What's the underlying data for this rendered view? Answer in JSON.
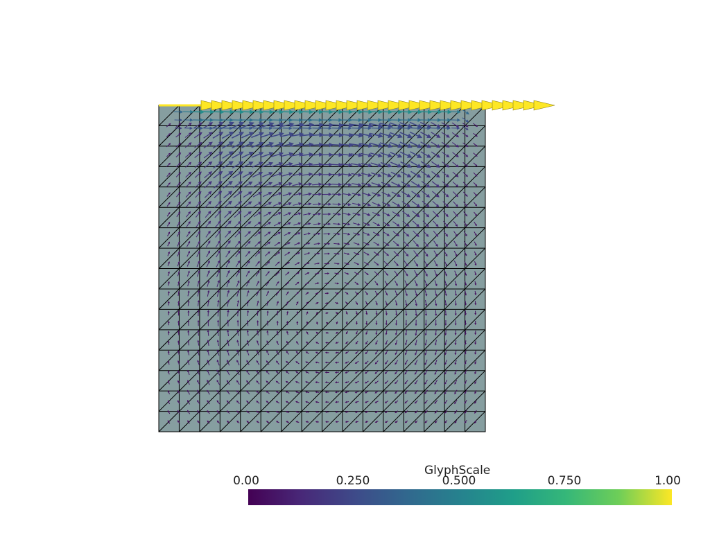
{
  "scene": {
    "mesh": {
      "divisions": 16,
      "fill": "#869ea0",
      "edge_color": "#000000"
    },
    "glyphs": {
      "field": "lid-driven cavity velocity",
      "lid_speed": 1.0
    }
  },
  "colorbar": {
    "title": "GlyphScale",
    "colormap": "viridis",
    "range": [
      0,
      1
    ],
    "ticks": [
      "0.00",
      "0.250",
      "0.500",
      "0.750",
      "1.00"
    ]
  }
}
